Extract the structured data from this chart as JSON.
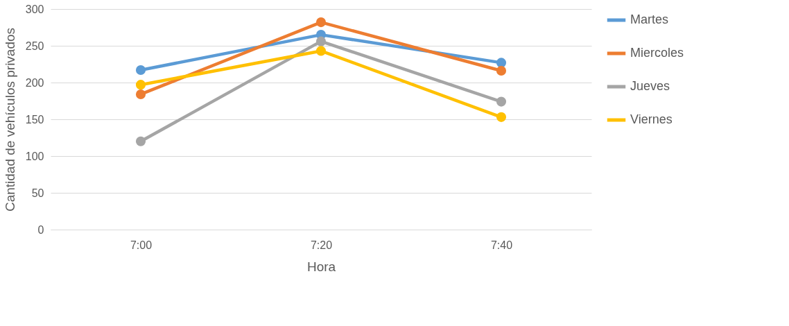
{
  "chart_data": {
    "type": "line",
    "xlabel": "Hora",
    "ylabel": "Cantidad de vehículos privados",
    "categories": [
      "7:00",
      "7:20",
      "7:40"
    ],
    "series": [
      {
        "name": "Martes",
        "color": "#5b9bd5",
        "values": [
          217,
          265,
          227
        ]
      },
      {
        "name": "Miercoles",
        "color": "#ed7d31",
        "values": [
          184,
          282,
          216
        ]
      },
      {
        "name": "Jueves",
        "color": "#a5a5a5",
        "values": [
          120,
          256,
          174
        ]
      },
      {
        "name": "Viernes",
        "color": "#ffc000",
        "values": [
          197,
          243,
          153
        ]
      }
    ],
    "ylim": [
      0,
      300
    ],
    "yticks": [
      0,
      50,
      100,
      150,
      200,
      250,
      300
    ],
    "grid": "y",
    "legend": "right",
    "marker": "circle",
    "line_style": "solid"
  }
}
